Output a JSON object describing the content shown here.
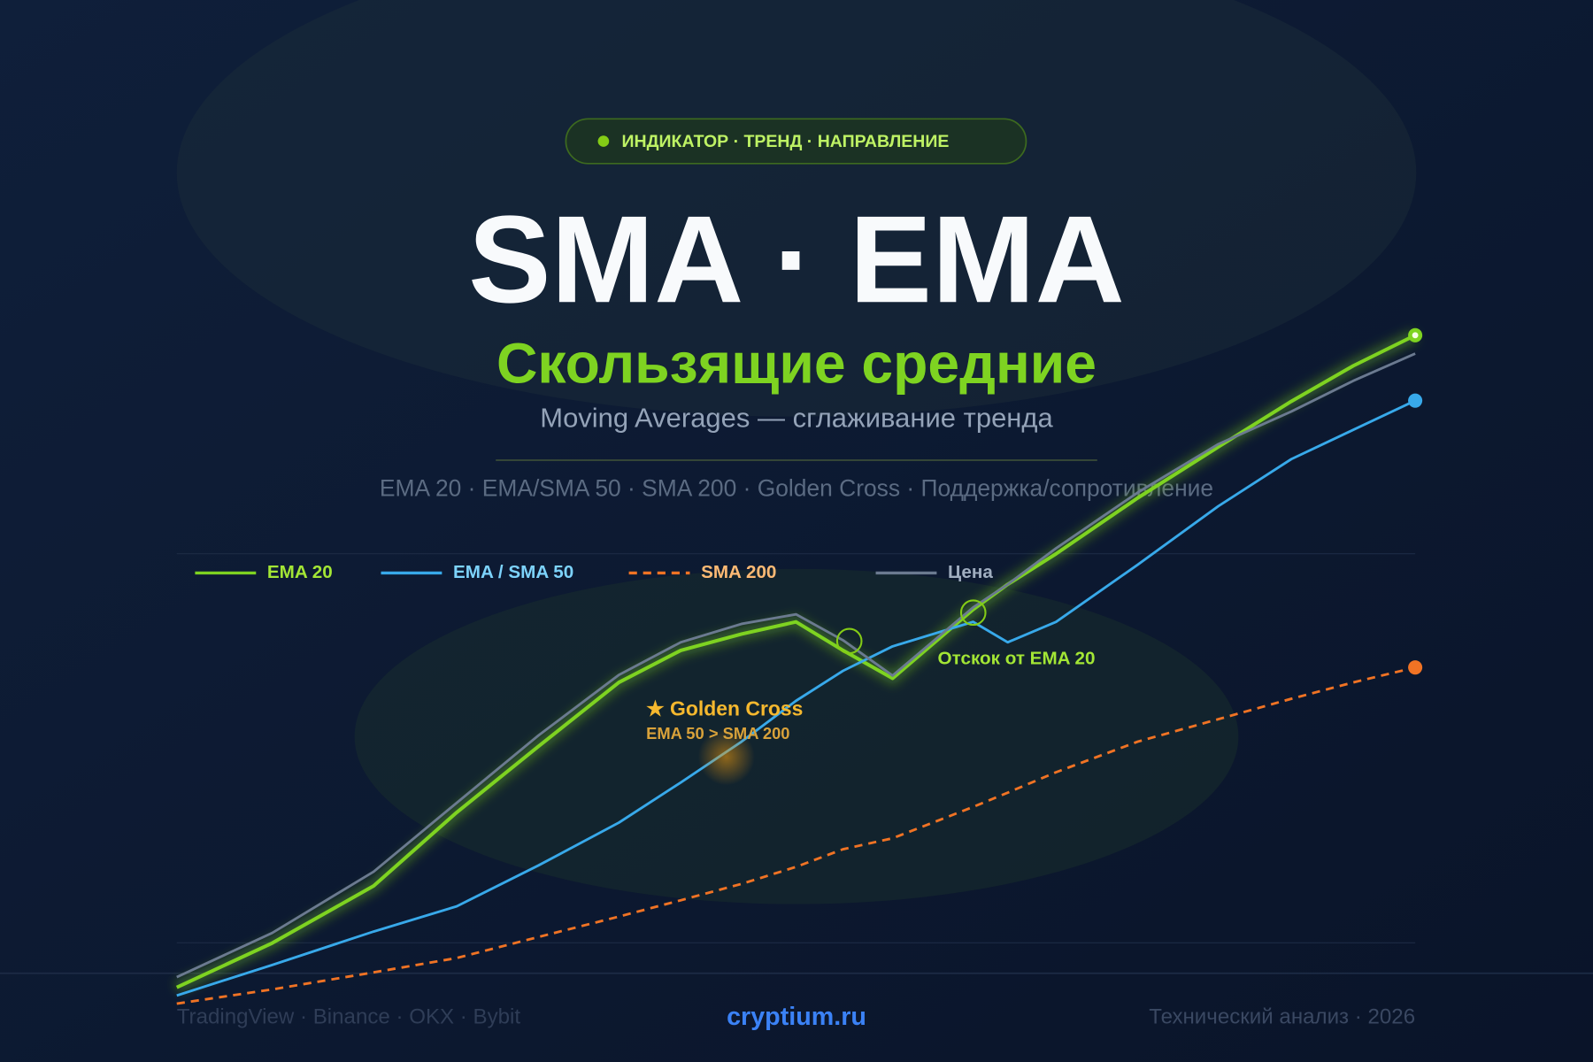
{
  "header": {
    "badge": "ИНДИКАТОР · ТРЕНД · НАПРАВЛЕНИЕ",
    "title": "SMA · EMA",
    "subtitle": "Скользящие средние",
    "tagline": "Moving Averages — сглаживание тренда",
    "topics": "EMA 20 · EMA/SMA 50 · SMA 200 · Golden Cross · Поддержка/сопротивление"
  },
  "chart_data": {
    "type": "line",
    "x": [
      0,
      7.7,
      15.9,
      22.6,
      29.2,
      35.7,
      40.7,
      45.6,
      50.0,
      53.8,
      57.8,
      64.3,
      67.1,
      71.0,
      77.6,
      84.1,
      90.0,
      95.0,
      100
    ],
    "xlim": [
      0,
      100
    ],
    "ylim": [
      0,
      100
    ],
    "series": [
      {
        "name": "EMA 20",
        "color": "#7ed321",
        "label_color": "#a3e635",
        "style": "solid",
        "glow": true,
        "values": [
          4.2,
          10.7,
          19.1,
          29.9,
          39.6,
          49.0,
          53.7,
          56.1,
          57.9,
          53.7,
          49.6,
          59.7,
          63.4,
          67.9,
          76.1,
          83.6,
          90.3,
          95.5,
          100
        ]
      },
      {
        "name": "EMA / SMA 50",
        "color": "#38a9ea",
        "label_color": "#7dd3fc",
        "style": "solid",
        "glow": false,
        "values": [
          3.0,
          7.5,
          12.4,
          16.1,
          22.1,
          28.4,
          34.3,
          40.3,
          46.3,
          50.7,
          54.3,
          57.9,
          54.9,
          57.9,
          66.3,
          74.9,
          81.8,
          86.1,
          90.4
        ]
      },
      {
        "name": "SMA 200",
        "color": "#f07324",
        "label_color": "#fdba74",
        "style": "dashed",
        "glow": false,
        "values": [
          1.8,
          3.9,
          6.4,
          8.5,
          11.6,
          14.6,
          17.0,
          19.4,
          21.9,
          24.5,
          26.1,
          30.7,
          32.8,
          35.8,
          40.3,
          43.6,
          46.6,
          49.0,
          51.2
        ]
      },
      {
        "name": "Цена",
        "color": "#6b7a90",
        "label_color": "#a0aec0",
        "style": "solid",
        "glow": false,
        "values": [
          5.7,
          12.2,
          21.2,
          31.3,
          41.2,
          50.1,
          54.9,
          57.6,
          59.0,
          55.2,
          50.0,
          60.0,
          63.4,
          68.7,
          76.9,
          84.0,
          88.8,
          93.3,
          97.3
        ]
      }
    ],
    "annotations": [
      "★ Golden Cross",
      "EMA 50 > SMA 200",
      "Отскок от EMA 20"
    ]
  },
  "footer": {
    "left": "TradingView · Binance · OKX · Bybit",
    "center": "cryptium.ru",
    "right": "Технический анализ · 2026"
  }
}
